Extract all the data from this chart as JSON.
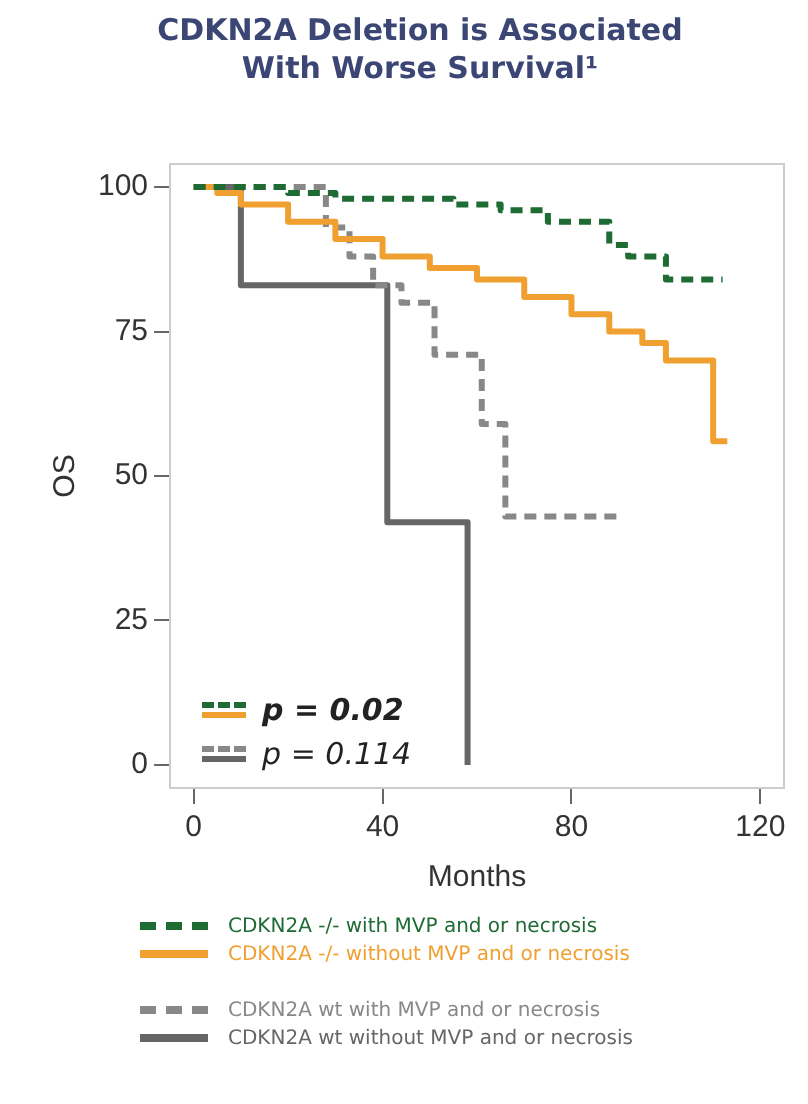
{
  "chart_data": {
    "type": "step",
    "title": "CDKN2A Deletion is Associated With Worse Survival¹",
    "xlabel": "Months",
    "ylabel": "OS",
    "xlim": [
      -5,
      125
    ],
    "ylim": [
      -4,
      104
    ],
    "xticks": [
      0,
      40,
      80,
      120
    ],
    "yticks": [
      0,
      25,
      50,
      75,
      100
    ],
    "grid": false,
    "legend": "bottom",
    "marker": "none",
    "series": [
      {
        "name": "CDKN2A -/- with MVP and or necrosis",
        "color": "#1e6b34",
        "line_style": "dashed",
        "x": [
          0,
          20,
          30,
          55,
          65,
          75,
          88,
          92,
          100,
          112
        ],
        "values": [
          100,
          99,
          98,
          97,
          96,
          94,
          90,
          88,
          84,
          84
        ]
      },
      {
        "name": "CDKN2A -/- without MVP and or necrosis",
        "color": "#f0a030",
        "line_style": "solid",
        "x": [
          0,
          5,
          10,
          20,
          30,
          40,
          50,
          60,
          70,
          80,
          88,
          95,
          100,
          108,
          110,
          113
        ],
        "values": [
          100,
          99,
          97,
          94,
          91,
          88,
          86,
          84,
          81,
          78,
          75,
          73,
          70,
          70,
          56,
          56
        ]
      },
      {
        "name": "CDKN2A wt with MVP and or necrosis",
        "color": "#888888",
        "line_style": "dashed",
        "x": [
          0,
          28,
          33,
          38,
          44,
          51,
          61,
          66,
          90
        ],
        "values": [
          100,
          93,
          88,
          83,
          80,
          71,
          59,
          43,
          43
        ]
      },
      {
        "name": "CDKN2A wt without MVP and or necrosis",
        "color": "#666666",
        "line_style": "solid",
        "x": [
          0,
          10,
          41,
          58
        ],
        "values": [
          100,
          83,
          42,
          0
        ]
      }
    ],
    "annotations": [
      "p = 0.02",
      "p = 0.114"
    ]
  }
}
